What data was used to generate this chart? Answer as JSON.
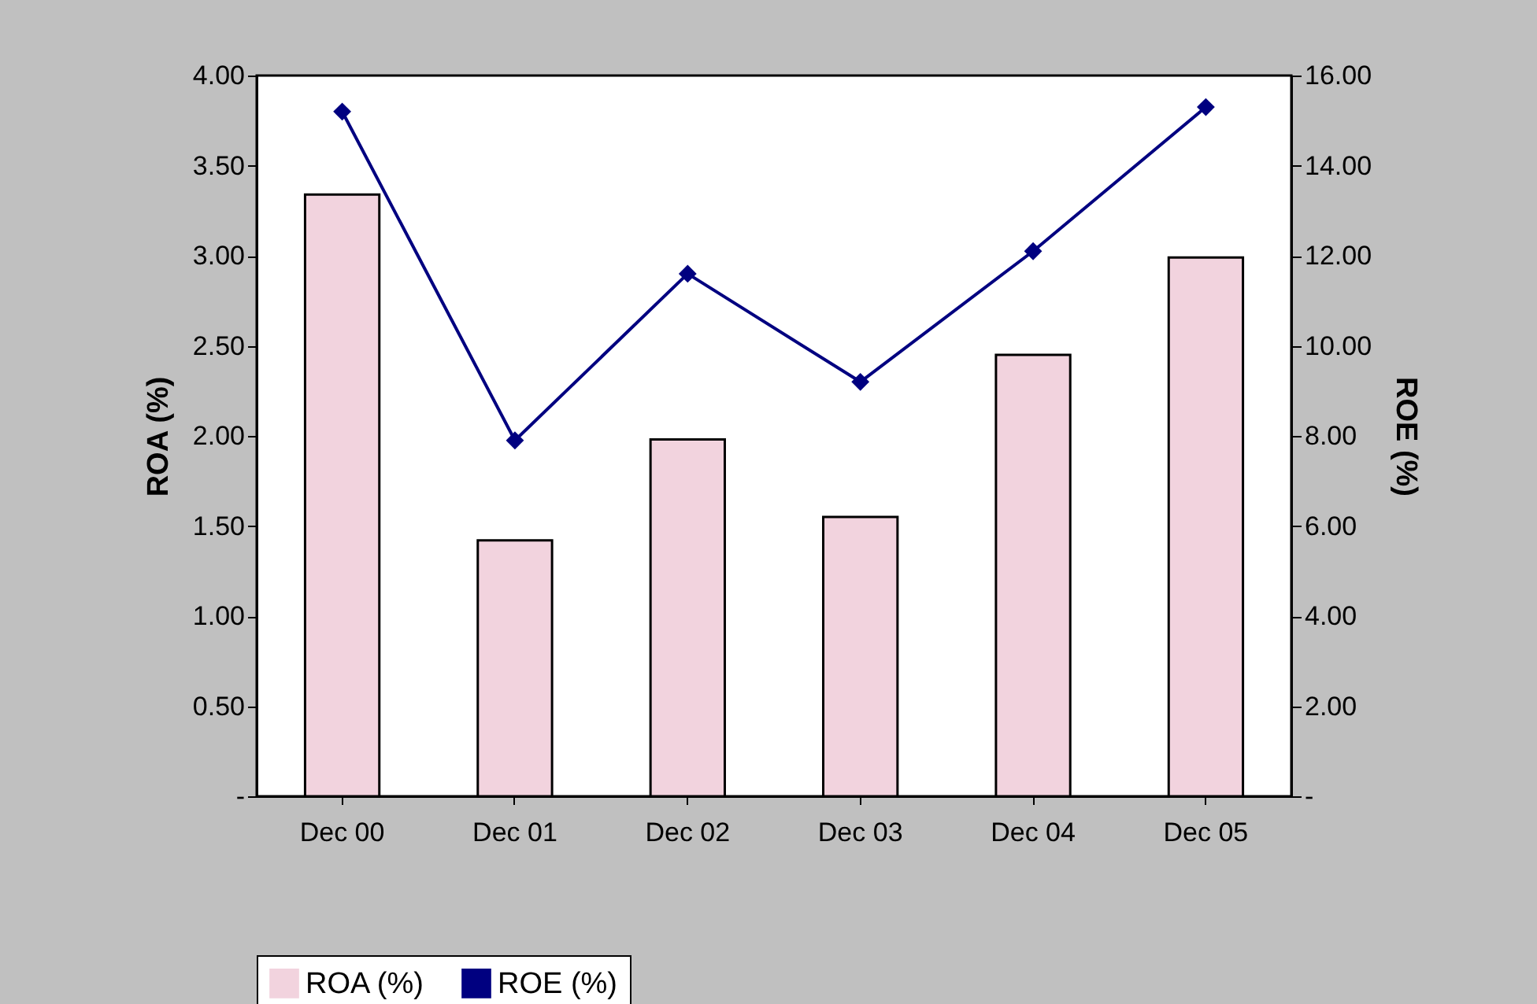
{
  "chart_data": {
    "type": "bar",
    "categories": [
      "Dec 00",
      "Dec 01",
      "Dec 02",
      "Dec 03",
      "Dec 04",
      "Dec 05"
    ],
    "series": [
      {
        "name": "ROA (%)",
        "color": "#f2d3de",
        "values": [
          3.34,
          1.42,
          1.98,
          1.55,
          2.45,
          2.99
        ]
      },
      {
        "name": "ROE (%)",
        "type": "line",
        "axis": "y2",
        "color": "#000080",
        "values": [
          15.2,
          7.9,
          11.6,
          9.2,
          12.1,
          15.3
        ]
      }
    ],
    "ylabel": "ROA (%)",
    "y2label": "ROE (%)",
    "ylim": [
      0,
      4
    ],
    "yticks": [
      {
        "value": 0,
        "label": "-"
      },
      {
        "value": 0.5,
        "label": "0.50"
      },
      {
        "value": 1,
        "label": "1.00"
      },
      {
        "value": 1.5,
        "label": "1.50"
      },
      {
        "value": 2,
        "label": "2.00"
      },
      {
        "value": 2.5,
        "label": "2.50"
      },
      {
        "value": 3,
        "label": "3.00"
      },
      {
        "value": 3.5,
        "label": "3.50"
      },
      {
        "value": 4,
        "label": "4.00"
      }
    ],
    "y2lim": [
      0,
      16
    ],
    "y2ticks": [
      {
        "value": 0,
        "label": "-"
      },
      {
        "value": 2,
        "label": "2.00"
      },
      {
        "value": 4,
        "label": "4.00"
      },
      {
        "value": 6,
        "label": "6.00"
      },
      {
        "value": 8,
        "label": "8.00"
      },
      {
        "value": 10,
        "label": "10.00"
      },
      {
        "value": 12,
        "label": "12.00"
      },
      {
        "value": 14,
        "label": "14.00"
      },
      {
        "value": 16,
        "label": "16.00"
      }
    ],
    "legend": "bottom",
    "marker": "diamond",
    "grid": false
  }
}
